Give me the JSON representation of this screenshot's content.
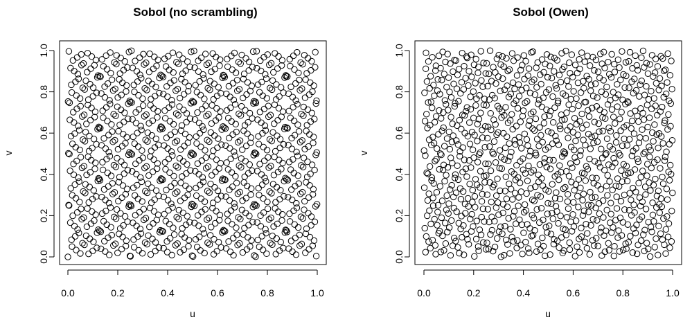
{
  "chart_data": [
    {
      "type": "scatter",
      "title": "Sobol (no scrambling)",
      "xlabel": "u",
      "ylabel": "v",
      "xlim": [
        0,
        1
      ],
      "ylim": [
        0,
        1
      ],
      "xticks": [
        "0.0",
        "0.2",
        "0.4",
        "0.6",
        "0.8",
        "1.0"
      ],
      "yticks": [
        "0.0",
        "0.2",
        "0.4",
        "0.6",
        "0.8",
        "1.0"
      ],
      "marker": "open-circle",
      "grid": false,
      "n_points": 1024
    },
    {
      "type": "scatter",
      "title": "Sobol (Owen)",
      "xlabel": "u",
      "ylabel": "v",
      "xlim": [
        0,
        1
      ],
      "ylim": [
        0,
        1
      ],
      "xticks": [
        "0.0",
        "0.2",
        "0.4",
        "0.6",
        "0.8",
        "1.0"
      ],
      "yticks": [
        "0.0",
        "0.2",
        "0.4",
        "0.6",
        "0.8",
        "1.0"
      ],
      "marker": "open-circle",
      "grid": false,
      "n_points": 1024
    }
  ]
}
